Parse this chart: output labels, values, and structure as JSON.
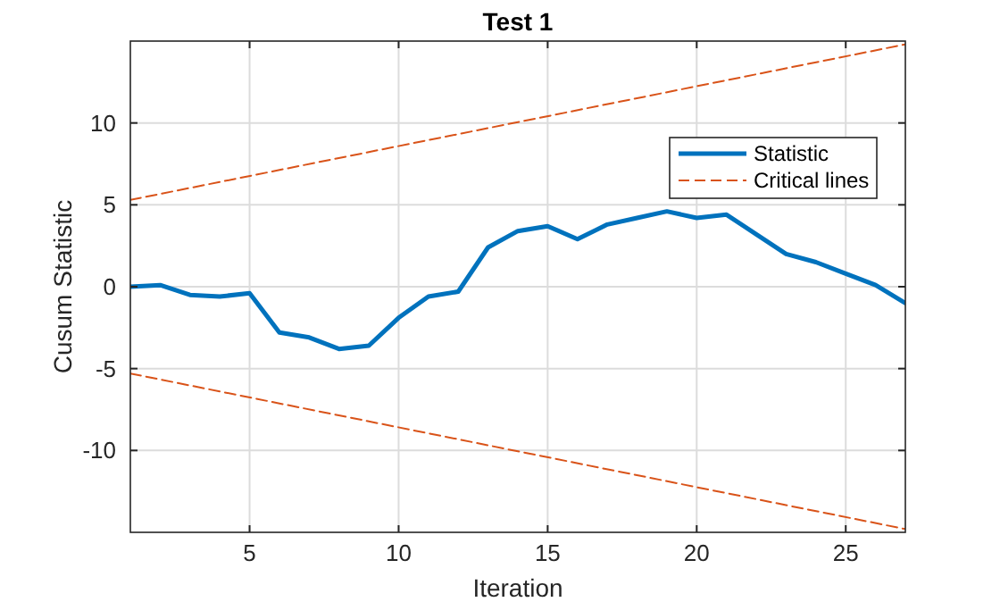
{
  "chart_data": {
    "type": "line",
    "title": "Test 1",
    "xlabel": "Iteration",
    "ylabel": "Cusum Statistic",
    "xlim": [
      1,
      27
    ],
    "xticks": [
      5,
      10,
      15,
      20,
      25
    ],
    "ylim": [
      -15,
      15
    ],
    "yticks": [
      -10,
      -5,
      0,
      5,
      10
    ],
    "grid": true,
    "legend": "top right",
    "series": [
      {
        "name": "Statistic",
        "color": "#0072bd",
        "line_style": "solid",
        "x": [
          1,
          2,
          3,
          4,
          5,
          6,
          7,
          8,
          9,
          10,
          11,
          12,
          13,
          14,
          15,
          16,
          17,
          18,
          19,
          20,
          21,
          22,
          23,
          24,
          25,
          26,
          27
        ],
        "values": [
          0,
          0.1,
          -0.5,
          -0.6,
          -0.4,
          -2.8,
          -3.1,
          -3.8,
          -3.6,
          -1.9,
          -0.6,
          -0.3,
          2.4,
          3.4,
          3.7,
          2.9,
          3.8,
          4.2,
          4.6,
          4.2,
          4.4,
          3.2,
          2.0,
          1.5,
          0.8,
          0.1,
          -1.0
        ]
      },
      {
        "name": "Critical lines",
        "color": "#d95319",
        "line_style": "dashed",
        "x": [
          1,
          27
        ],
        "values": [
          5.3,
          14.8
        ]
      },
      {
        "color": "#d95319",
        "line_style": "dashed",
        "x": [
          1,
          27
        ],
        "values": [
          -5.3,
          -14.8
        ]
      }
    ]
  }
}
